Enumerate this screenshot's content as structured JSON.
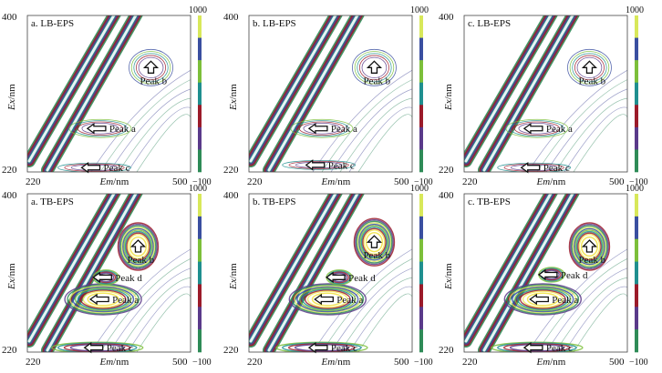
{
  "chart_data": [
    {
      "type": "contour",
      "title": "a. LB-EPS",
      "xlabel_italic": "Em",
      "xlabel_unit": "/nm",
      "ylabel_italic": "Ex",
      "ylabel_unit": "/nm",
      "xlim": [
        220,
        500
      ],
      "ylim": [
        220,
        400
      ],
      "x_ticks": [
        "220",
        "500"
      ],
      "y_ticks": [
        "400",
        "220"
      ],
      "colorbar": {
        "min": -100,
        "max": 1000,
        "labels": [
          "1000",
          "−100"
        ]
      },
      "peaks": [
        {
          "label": "Peak a",
          "em": 345,
          "ex": 270
        },
        {
          "label": "Peak b",
          "em": 432,
          "ex": 340
        },
        {
          "label": "Peak c",
          "em": 335,
          "ex": 225
        }
      ]
    },
    {
      "type": "contour",
      "title": "b. LB-EPS",
      "xlabel_italic": "Em",
      "xlabel_unit": "/nm",
      "ylabel_italic": "Ex",
      "ylabel_unit": "/nm",
      "xlim": [
        220,
        500
      ],
      "ylim": [
        220,
        400
      ],
      "x_ticks": [
        "220",
        "500"
      ],
      "y_ticks": [
        "400",
        "220"
      ],
      "colorbar": {
        "min": -100,
        "max": 1000,
        "labels": [
          "1000",
          "−100"
        ]
      },
      "peaks": [
        {
          "label": "Peak a",
          "em": 345,
          "ex": 270
        },
        {
          "label": "Peak b",
          "em": 435,
          "ex": 340
        },
        {
          "label": "Peak c",
          "em": 340,
          "ex": 228
        }
      ]
    },
    {
      "type": "contour",
      "title": "c. LB-EPS",
      "xlabel_italic": "Em",
      "xlabel_unit": "/nm",
      "ylabel_italic": "Ex",
      "ylabel_unit": "/nm",
      "xlim": [
        220,
        500
      ],
      "ylim": [
        220,
        400
      ],
      "x_ticks": [
        "220",
        "500"
      ],
      "y_ticks": [
        "400",
        "220"
      ],
      "colorbar": {
        "min": -100,
        "max": 1000,
        "labels": [
          "1000",
          "−100"
        ]
      },
      "peaks": [
        {
          "label": "Peak a",
          "em": 345,
          "ex": 270
        },
        {
          "label": "Peak b",
          "em": 435,
          "ex": 340
        },
        {
          "label": "Peak c",
          "em": 340,
          "ex": 225
        }
      ]
    },
    {
      "type": "contour",
      "title": "a. TB-EPS",
      "xlabel_italic": "Em",
      "xlabel_unit": "/nm",
      "ylabel_italic": "Ex",
      "ylabel_unit": "/nm",
      "xlim": [
        220,
        500
      ],
      "ylim": [
        220,
        400
      ],
      "x_ticks": [
        "220",
        "500"
      ],
      "y_ticks": [
        "400",
        "220"
      ],
      "colorbar": {
        "min": -100,
        "max": 1000,
        "labels": [
          "1000",
          "−100"
        ]
      },
      "peaks": [
        {
          "label": "Peak a",
          "em": 350,
          "ex": 280
        },
        {
          "label": "Peak b",
          "em": 410,
          "ex": 340
        },
        {
          "label": "Peak c",
          "em": 340,
          "ex": 225
        },
        {
          "label": "Peak d",
          "em": 355,
          "ex": 305
        }
      ]
    },
    {
      "type": "contour",
      "title": "b. TB-EPS",
      "xlabel_italic": "Em",
      "xlabel_unit": "/nm",
      "ylabel_italic": "Ex",
      "ylabel_unit": "/nm",
      "xlim": [
        220,
        500
      ],
      "ylim": [
        220,
        400
      ],
      "x_ticks": [
        "220",
        "500"
      ],
      "y_ticks": [
        "400",
        "220"
      ],
      "colorbar": {
        "min": -100,
        "max": 1000,
        "labels": [
          "1000",
          "−100"
        ]
      },
      "peaks": [
        {
          "label": "Peak a",
          "em": 355,
          "ex": 280
        },
        {
          "label": "Peak b",
          "em": 435,
          "ex": 345
        },
        {
          "label": "Peak c",
          "em": 345,
          "ex": 225
        },
        {
          "label": "Peak d",
          "em": 375,
          "ex": 305
        }
      ]
    },
    {
      "type": "contour",
      "title": "c. TB-EPS",
      "xlabel_italic": "Em",
      "xlabel_unit": "/nm",
      "ylabel_italic": "Ex",
      "ylabel_unit": "/nm",
      "xlim": [
        220,
        500
      ],
      "ylim": [
        220,
        400
      ],
      "x_ticks": [
        "220",
        "500"
      ],
      "y_ticks": [
        "400",
        "220"
      ],
      "colorbar": {
        "min": -100,
        "max": 1000,
        "labels": [
          "1000",
          "−100"
        ]
      },
      "peaks": [
        {
          "label": "Peak a",
          "em": 355,
          "ex": 280
        },
        {
          "label": "Peak b",
          "em": 435,
          "ex": 340
        },
        {
          "label": "Peak c",
          "em": 345,
          "ex": 225
        },
        {
          "label": "Peak d",
          "em": 370,
          "ex": 308
        }
      ]
    }
  ],
  "colors": {
    "scale": [
      "#2e8b57",
      "#5a3a8a",
      "#9b1b2a",
      "#1f8f8f",
      "#7cbf3a",
      "#3a4fa0",
      "#d8e85a"
    ],
    "contour_blue": "#4a4f9a",
    "contour_green": "#3f8f6a",
    "white_fill": "#ffffff",
    "yellow": "#f2e65a",
    "text": "#111111"
  }
}
